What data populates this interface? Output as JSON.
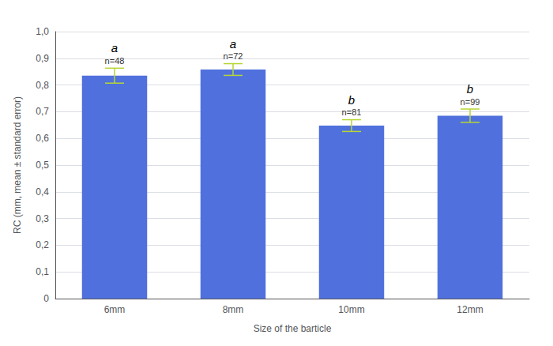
{
  "chart_data": {
    "type": "bar",
    "xlabel": "Size of the barticle",
    "ylabel": "RC (mm, mean ± standard error)",
    "categories": [
      "6mm",
      "8mm",
      "10mm",
      "12mm"
    ],
    "values": [
      0.835,
      0.858,
      0.648,
      0.685
    ],
    "errors": [
      0.028,
      0.022,
      0.022,
      0.025
    ],
    "n_labels": [
      "n=48",
      "n=72",
      "n=81",
      "n=99"
    ],
    "sig_labels": [
      "a",
      "a",
      "b",
      "b"
    ],
    "ylim": [
      0,
      1.0
    ],
    "yticks": [
      0,
      {
        "value": 0.1,
        "label": "0,1"
      },
      {
        "value": 0.2,
        "label": "0,2"
      },
      {
        "value": 0.3,
        "label": "0,3"
      },
      {
        "value": 0.4,
        "label": "0,4"
      },
      {
        "value": 0.5,
        "label": "0,5"
      },
      {
        "value": 0.6,
        "label": "0,6"
      },
      {
        "value": 0.7,
        "label": "0,7"
      },
      {
        "value": 0.8,
        "label": "0,8"
      },
      {
        "value": 0.9,
        "label": "0,9"
      },
      {
        "value": 1.0,
        "label": "1,0"
      }
    ],
    "grid": true
  }
}
